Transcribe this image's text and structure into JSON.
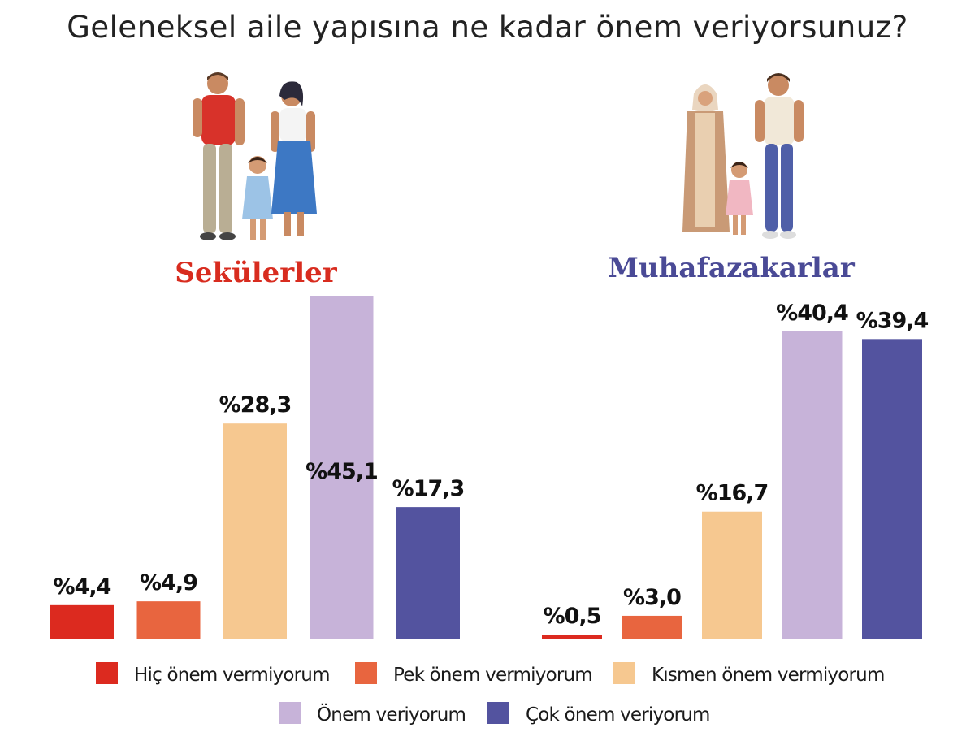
{
  "chart_data": {
    "type": "bar",
    "title": "Geleneksel aile yapısına ne kadar önem veriyorsunuz?",
    "groups": [
      {
        "name": "Sekülerler",
        "color": "#d82c1f"
      },
      {
        "name": "Muhafazakarlar",
        "color": "#4a4a96"
      }
    ],
    "series": [
      {
        "name": "Hiç önem vermiyorum",
        "color": "#dc2a1f",
        "values": [
          4.4,
          0.5
        ],
        "labels": [
          "%4,4",
          "%0,5"
        ]
      },
      {
        "name": "Pek önem vermiyorum",
        "color": "#e8653f",
        "values": [
          4.9,
          3.0
        ],
        "labels": [
          "%4,9",
          "%3,0"
        ]
      },
      {
        "name": "Kısmen önem vermiyorum",
        "color": "#f6c890",
        "values": [
          28.3,
          16.7
        ],
        "labels": [
          "%28,3",
          "%16,7"
        ]
      },
      {
        "name": "Önem veriyorum",
        "color": "#c7b3d9",
        "values": [
          45.1,
          40.4
        ],
        "labels": [
          "%45,1",
          "%40,4"
        ]
      },
      {
        "name": "Çok önem veriyorum",
        "color": "#53539f",
        "values": [
          17.3,
          39.4
        ],
        "labels": [
          "%17,3",
          "%39,4"
        ]
      }
    ],
    "ylim": [
      0,
      45.1
    ],
    "grid": false,
    "legend_position": "bottom"
  }
}
